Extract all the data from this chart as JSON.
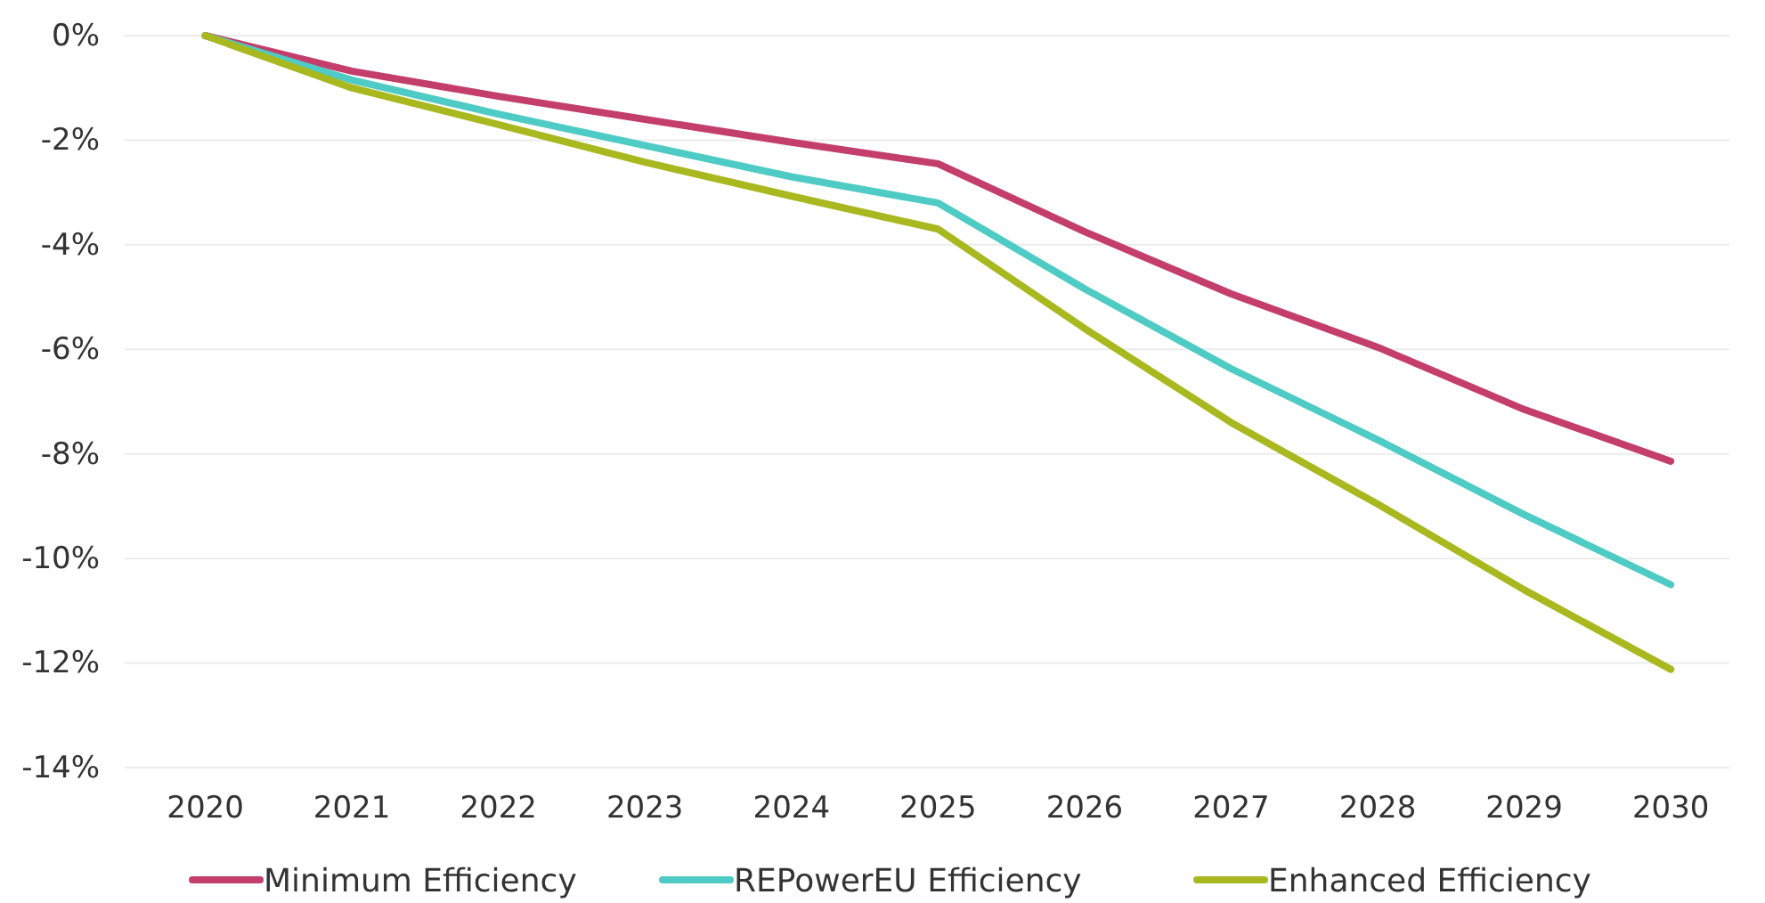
{
  "chart_data": {
    "type": "line",
    "x": [
      2020,
      2021,
      2022,
      2023,
      2024,
      2025,
      2026,
      2027,
      2028,
      2029,
      2030
    ],
    "xlim": [
      2019.45,
      2030.4
    ],
    "xticks": [
      2020,
      2021,
      2022,
      2023,
      2024,
      2025,
      2026,
      2027,
      2028,
      2029,
      2030
    ],
    "ylim": [
      -14,
      0
    ],
    "yticks": [
      {
        "value": -14,
        "label": "-14%"
      },
      {
        "value": -12,
        "label": "-12%"
      },
      {
        "value": -10,
        "label": "-10%"
      },
      {
        "value": -8,
        "label": "-8%"
      },
      {
        "value": -6,
        "label": "-6%"
      },
      {
        "value": -4,
        "label": "-4%"
      },
      {
        "value": -2,
        "label": "-2%"
      },
      {
        "value": 0,
        "label": "0%"
      }
    ],
    "grid": "y",
    "legend": "bottom",
    "series": [
      {
        "name": "Minimum Efficiency",
        "color": "#c43e6b",
        "values": [
          0,
          -0.68,
          -1.16,
          -1.6,
          -2.04,
          -2.45,
          -3.75,
          -4.94,
          -5.96,
          -7.15,
          -8.14
        ]
      },
      {
        "name": "REPowerEU Efficiency",
        "color": "#4ecbc4",
        "values": [
          0,
          -0.85,
          -1.5,
          -2.1,
          -2.7,
          -3.2,
          -4.84,
          -6.37,
          -7.73,
          -9.16,
          -10.5
        ]
      },
      {
        "name": "Enhanced Efficiency",
        "color": "#a8b81e",
        "values": [
          0,
          -1.0,
          -1.7,
          -2.42,
          -3.07,
          -3.7,
          -5.6,
          -7.4,
          -8.96,
          -10.6,
          -12.12
        ]
      }
    ]
  }
}
